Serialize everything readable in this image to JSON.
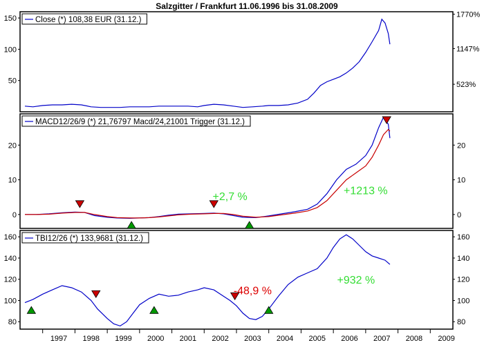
{
  "title": "Salzgitter / Frankfurt 11.06.1996 bis 31.08.2009",
  "x_axis": {
    "labels": [
      "1997",
      "1998",
      "1999",
      "2000",
      "2001",
      "2002",
      "2003",
      "2004",
      "2005",
      "2006",
      "2007",
      "2008",
      "2009"
    ]
  },
  "chart_data": [
    {
      "type": "line",
      "panel": "price",
      "legend": "Close (*) 108,38 EUR (31.12.)",
      "legend_placement": "top-left",
      "grid": false,
      "xlim": [
        1996.3,
        2009.7
      ],
      "ylim": [
        0,
        160
      ],
      "y_ticks": [
        50,
        100,
        150
      ],
      "right_ticks": [
        {
          "value": 44,
          "label": "523%"
        },
        {
          "value": 101,
          "label": "1147%"
        },
        {
          "value": 156,
          "label": "1770%"
        }
      ],
      "series": [
        {
          "color": "#0000c8",
          "x": [
            1996.45,
            1996.7,
            1997.0,
            1997.3,
            1997.6,
            1997.9,
            1998.2,
            1998.5,
            1998.8,
            1999.1,
            1999.4,
            1999.7,
            2000.0,
            2000.3,
            2000.6,
            2000.9,
            2001.2,
            2001.5,
            2001.8,
            2002.0,
            2002.3,
            2002.6,
            2002.9,
            2003.2,
            2003.5,
            2003.8,
            2004.0,
            2004.3,
            2004.6,
            2004.9,
            2005.2,
            2005.4,
            2005.6,
            2005.8,
            2006.0,
            2006.2,
            2006.4,
            2006.6,
            2006.8,
            2007.0,
            2007.2,
            2007.4,
            2007.5,
            2007.6,
            2007.7,
            2007.75
          ],
          "y": [
            9,
            8,
            10,
            11,
            11,
            12,
            11,
            8,
            7,
            7,
            7,
            8,
            8,
            8,
            9,
            9,
            9,
            9,
            8,
            10,
            12,
            11,
            9,
            7,
            8,
            9,
            10,
            10,
            11,
            14,
            20,
            30,
            42,
            48,
            52,
            56,
            62,
            70,
            80,
            95,
            112,
            130,
            148,
            142,
            125,
            108
          ]
        }
      ]
    },
    {
      "type": "line",
      "panel": "macd",
      "legend": "MACD12/26/9 (*) 21,76797 Macd/24,21001 Trigger (31.12.)",
      "legend_placement": "top-left",
      "grid": false,
      "xlim": [
        1996.3,
        2009.7
      ],
      "ylim": [
        -4,
        29
      ],
      "y_ticks": [
        0,
        10,
        20
      ],
      "series": [
        {
          "color": "#0000c8",
          "x": [
            1996.45,
            1996.8,
            1997.2,
            1997.6,
            1998.0,
            1998.3,
            1998.6,
            1999.0,
            1999.3,
            1999.7,
            2000.0,
            2000.3,
            2000.6,
            2000.9,
            2001.2,
            2001.6,
            2002.0,
            2002.3,
            2002.6,
            2002.9,
            2003.2,
            2003.6,
            2004.0,
            2004.4,
            2004.8,
            2005.2,
            2005.5,
            2005.8,
            2006.1,
            2006.4,
            2006.7,
            2007.0,
            2007.2,
            2007.4,
            2007.55,
            2007.7,
            2007.75
          ],
          "y": [
            0,
            0,
            0.2,
            0.5,
            0.7,
            0.6,
            -0.3,
            -0.8,
            -1.0,
            -1.1,
            -1.0,
            -0.9,
            -0.6,
            -0.2,
            0.1,
            0.2,
            0.3,
            0.4,
            0.2,
            -0.3,
            -0.8,
            -0.9,
            -0.4,
            0.2,
            0.8,
            1.5,
            3,
            6,
            10,
            13,
            14.5,
            17,
            20,
            25,
            28,
            26,
            22
          ]
        },
        {
          "color": "#c80000",
          "x": [
            1996.45,
            1996.8,
            1997.2,
            1997.6,
            1998.0,
            1998.3,
            1998.6,
            1999.0,
            1999.3,
            1999.7,
            2000.0,
            2000.3,
            2000.6,
            2000.9,
            2001.2,
            2001.6,
            2002.0,
            2002.3,
            2002.6,
            2002.9,
            2003.2,
            2003.6,
            2004.0,
            2004.4,
            2004.8,
            2005.2,
            2005.5,
            2005.8,
            2006.1,
            2006.4,
            2006.7,
            2007.0,
            2007.2,
            2007.4,
            2007.55,
            2007.7,
            2007.75
          ],
          "y": [
            0,
            0,
            0.1,
            0.4,
            0.6,
            0.6,
            0,
            -0.6,
            -0.9,
            -1.0,
            -1.0,
            -0.9,
            -0.7,
            -0.4,
            -0.1,
            0.1,
            0.2,
            0.3,
            0.3,
            0,
            -0.5,
            -0.8,
            -0.6,
            -0.1,
            0.4,
            1,
            2,
            4,
            7,
            10,
            12,
            14,
            16.5,
            20,
            23,
            24.5,
            24
          ]
        }
      ],
      "annotations": [
        {
          "text": "+2,7 %",
          "x": 2002.8,
          "y": 4.2,
          "color": "#33dd33"
        },
        {
          "text": "+1213 %",
          "x": 2007.0,
          "y": 5.8,
          "color": "#33dd33"
        }
      ],
      "markers": [
        {
          "kind": "sell",
          "x": 1998.15,
          "y": 3.0
        },
        {
          "kind": "buy",
          "x": 1999.75,
          "y": -3.0
        },
        {
          "kind": "sell",
          "x": 2002.3,
          "y": 3.0
        },
        {
          "kind": "buy",
          "x": 2003.4,
          "y": -3.0
        },
        {
          "kind": "sell",
          "x": 2007.65,
          "y": 27.2
        }
      ]
    },
    {
      "type": "line",
      "panel": "tbi",
      "legend": "TBI12/26 (*) 133,9681 (31.12.)",
      "legend_placement": "top-left",
      "grid": false,
      "xlim": [
        1996.3,
        2009.7
      ],
      "ylim": [
        73,
        166
      ],
      "y_ticks": [
        80,
        100,
        120,
        140,
        160
      ],
      "series": [
        {
          "color": "#0000c8",
          "x": [
            1996.45,
            1996.7,
            1997.0,
            1997.3,
            1997.6,
            1997.9,
            1998.2,
            1998.5,
            1998.7,
            1999.0,
            1999.2,
            1999.4,
            1999.6,
            1999.8,
            2000.0,
            2000.3,
            2000.6,
            2000.9,
            2001.2,
            2001.5,
            2001.8,
            2002.0,
            2002.3,
            2002.5,
            2002.8,
            2003.0,
            2003.2,
            2003.4,
            2003.6,
            2003.8,
            2004.0,
            2004.3,
            2004.6,
            2004.9,
            2005.2,
            2005.5,
            2005.8,
            2006.0,
            2006.2,
            2006.4,
            2006.6,
            2006.8,
            2007.0,
            2007.2,
            2007.4,
            2007.6,
            2007.75
          ],
          "y": [
            98,
            101,
            106,
            110,
            114,
            112,
            108,
            100,
            92,
            83,
            78,
            76,
            80,
            88,
            96,
            102,
            106,
            104,
            105,
            108,
            110,
            112,
            110,
            106,
            100,
            95,
            88,
            83,
            82,
            85,
            92,
            104,
            115,
            122,
            126,
            130,
            140,
            150,
            158,
            162,
            158,
            152,
            146,
            142,
            140,
            138,
            134
          ]
        }
      ],
      "annotations": [
        {
          "text": "-48,9 %",
          "x": 2003.5,
          "y": 106,
          "color": "#dd0000"
        },
        {
          "text": "+932 %",
          "x": 2006.7,
          "y": 116,
          "color": "#33dd33"
        }
      ],
      "markers": [
        {
          "kind": "buy",
          "x": 1996.65,
          "y": 91
        },
        {
          "kind": "sell",
          "x": 1998.65,
          "y": 106
        },
        {
          "kind": "buy",
          "x": 2000.45,
          "y": 91
        },
        {
          "kind": "sell",
          "x": 2002.95,
          "y": 104
        },
        {
          "kind": "buy",
          "x": 2004.0,
          "y": 91
        }
      ]
    }
  ]
}
